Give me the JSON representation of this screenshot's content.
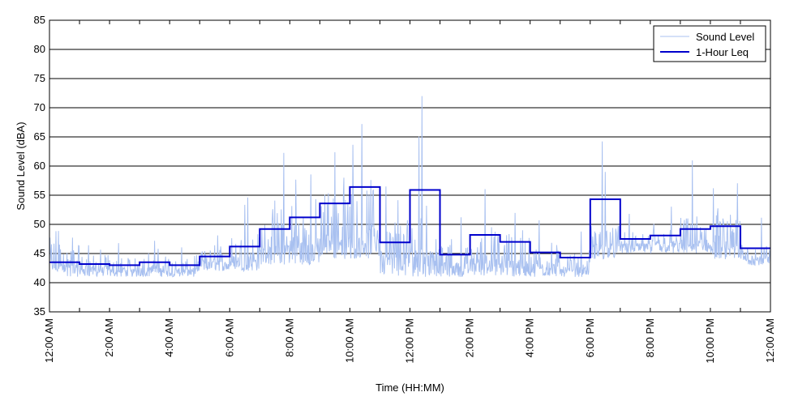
{
  "chart_data": {
    "type": "line",
    "title": "",
    "xlabel": "Time (HH:MM)",
    "ylabel": "Sound Level (dBA)",
    "ylim": [
      35,
      85
    ],
    "yticks": [
      35,
      40,
      45,
      50,
      55,
      60,
      65,
      70,
      75,
      80,
      85
    ],
    "xlim_hours": [
      0,
      24
    ],
    "xtick_labels": [
      "12:00 AM",
      "2:00 AM",
      "4:00 AM",
      "6:00 AM",
      "8:00 AM",
      "10:00 AM",
      "12:00 PM",
      "2:00 PM",
      "4:00 PM",
      "6:00 PM",
      "8:00 PM",
      "10:00 PM",
      "12:00 AM"
    ],
    "grid": "horizontal",
    "legend_position": "top-right",
    "colors": {
      "sound_level": "#a8c0f0",
      "leq": "#0000cc"
    },
    "series": [
      {
        "name": "Sound Level",
        "style": "thin-noisy-line",
        "hourly_range": [
          {
            "hour": 0,
            "low": 41,
            "high": 50,
            "spikes": [
              [
                0.3,
                50
              ]
            ]
          },
          {
            "hour": 1,
            "low": 41,
            "high": 46,
            "spikes": [
              [
                1.3,
                47
              ]
            ]
          },
          {
            "hour": 2,
            "low": 41,
            "high": 45,
            "spikes": [
              [
                2.3,
                48
              ]
            ]
          },
          {
            "hour": 3,
            "low": 41,
            "high": 46,
            "spikes": [
              [
                3.5,
                48
              ]
            ]
          },
          {
            "hour": 4,
            "low": 41,
            "high": 45,
            "spikes": [
              [
                4.4,
                47
              ]
            ]
          },
          {
            "hour": 5,
            "low": 42,
            "high": 47,
            "spikes": [
              [
                5.6,
                49
              ]
            ]
          },
          {
            "hour": 6,
            "low": 42,
            "high": 50,
            "spikes": [
              [
                6.5,
                54
              ],
              [
                6.6,
                55
              ]
            ]
          },
          {
            "hour": 7,
            "low": 43,
            "high": 53,
            "spikes": [
              [
                7.8,
                63
              ],
              [
                7.5,
                55
              ]
            ]
          },
          {
            "hour": 8,
            "low": 43,
            "high": 55,
            "spikes": [
              [
                8.2,
                58
              ],
              [
                8.7,
                60
              ]
            ]
          },
          {
            "hour": 9,
            "low": 44,
            "high": 58,
            "spikes": [
              [
                9.5,
                63
              ],
              [
                9.8,
                58
              ]
            ]
          },
          {
            "hour": 10,
            "low": 44,
            "high": 60,
            "spikes": [
              [
                10.1,
                65
              ],
              [
                10.4,
                68
              ]
            ]
          },
          {
            "hour": 11,
            "low": 41,
            "high": 53,
            "spikes": [
              [
                11.2,
                58
              ],
              [
                11.6,
                55
              ]
            ]
          },
          {
            "hour": 12,
            "low": 41,
            "high": 55,
            "spikes": [
              [
                12.4,
                73
              ],
              [
                12.3,
                66
              ]
            ]
          },
          {
            "hour": 13,
            "low": 41,
            "high": 48,
            "spikes": [
              [
                13.7,
                52
              ]
            ]
          },
          {
            "hour": 14,
            "low": 41,
            "high": 50,
            "spikes": [
              [
                14.5,
                57
              ]
            ]
          },
          {
            "hour": 15,
            "low": 41,
            "high": 50,
            "spikes": [
              [
                15.5,
                53
              ]
            ]
          },
          {
            "hour": 16,
            "low": 41,
            "high": 48,
            "spikes": [
              [
                16.3,
                52
              ]
            ]
          },
          {
            "hour": 17,
            "low": 41,
            "high": 46,
            "spikes": [
              [
                17.7,
                50
              ]
            ]
          },
          {
            "hour": 18,
            "low": 44,
            "high": 52,
            "spikes": [
              [
                18.4,
                65
              ],
              [
                18.5,
                60
              ]
            ]
          },
          {
            "hour": 19,
            "low": 45,
            "high": 50,
            "spikes": [
              [
                19.3,
                53
              ]
            ]
          },
          {
            "hour": 20,
            "low": 45,
            "high": 51,
            "spikes": [
              [
                20.7,
                54
              ]
            ]
          },
          {
            "hour": 21,
            "low": 45,
            "high": 52,
            "spikes": [
              [
                21.4,
                62
              ]
            ]
          },
          {
            "hour": 22,
            "low": 44,
            "high": 53,
            "spikes": [
              [
                22.1,
                57
              ],
              [
                22.9,
                58
              ]
            ]
          },
          {
            "hour": 23,
            "low": 43,
            "high": 48,
            "spikes": [
              [
                23.7,
                52
              ]
            ]
          }
        ]
      },
      {
        "name": "1-Hour Leq",
        "style": "step",
        "x_hours": [
          0,
          1,
          2,
          3,
          4,
          5,
          6,
          7,
          8,
          9,
          10,
          11,
          12,
          13,
          14,
          15,
          16,
          17,
          18,
          19,
          20,
          21,
          22,
          23
        ],
        "values": [
          43.5,
          43.2,
          43.0,
          43.5,
          43.0,
          44.5,
          46.2,
          49.2,
          51.2,
          53.6,
          56.4,
          46.9,
          55.9,
          44.8,
          48.2,
          47.0,
          45.2,
          44.3,
          54.3,
          47.5,
          48.1,
          49.2,
          49.7,
          45.9
        ]
      }
    ]
  }
}
